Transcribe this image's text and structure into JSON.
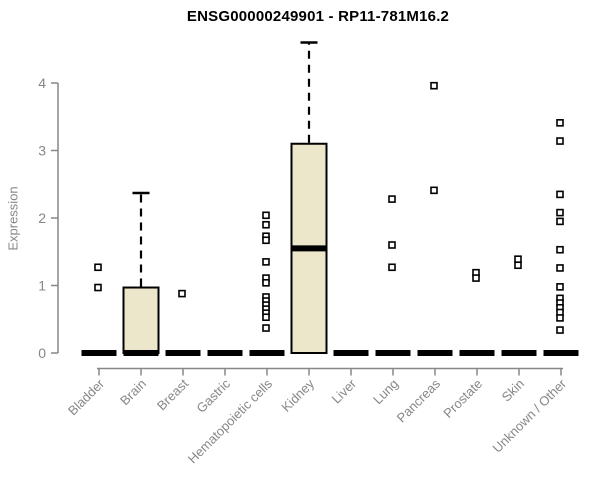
{
  "title": "ENSG00000249901 - RP11-781M16.2",
  "chart_data": {
    "type": "boxplot",
    "title": "ENSG00000249901 - RP11-781M16.2",
    "xlabel": "",
    "ylabel": "Expression",
    "ylim": [
      0,
      4
    ],
    "yticks": [
      "0",
      "1",
      "2",
      "3",
      "4"
    ],
    "grid": false,
    "legend": false,
    "categories": [
      "Bladder",
      "Brain",
      "Breast",
      "Gastric",
      "Hematopoietic cells",
      "Kidney",
      "Liver",
      "Lung",
      "Pancreas",
      "Prostate",
      "Skin",
      "Unknown / Other"
    ],
    "series": [
      {
        "category": "Bladder",
        "median": 0,
        "q1": 0,
        "q3": 0,
        "whisker_low": 0,
        "whisker_high": 0,
        "outliers": [
          1.27,
          0.97
        ]
      },
      {
        "category": "Brain",
        "median": 0,
        "q1": 0,
        "q3": 0.97,
        "whisker_low": 0,
        "whisker_high": 2.37,
        "outliers": []
      },
      {
        "category": "Breast",
        "median": 0,
        "q1": 0,
        "q3": 0,
        "whisker_low": 0,
        "whisker_high": 0,
        "outliers": [
          0.88
        ]
      },
      {
        "category": "Gastric",
        "median": 0,
        "q1": 0,
        "q3": 0,
        "whisker_low": 0,
        "whisker_high": 0,
        "outliers": []
      },
      {
        "category": "Hematopoietic cells",
        "median": 0,
        "q1": 0,
        "q3": 0,
        "whisker_low": 0,
        "whisker_high": 0,
        "outliers": [
          2.04,
          1.9,
          1.73,
          1.67,
          1.35,
          1.11,
          1.04,
          0.83,
          0.77,
          0.71,
          0.65,
          0.59,
          0.53,
          0.37
        ]
      },
      {
        "category": "Kidney",
        "median": 1.55,
        "q1": 0,
        "q3": 3.1,
        "whisker_low": 0,
        "whisker_high": 4.6,
        "outliers": []
      },
      {
        "category": "Liver",
        "median": 0,
        "q1": 0,
        "q3": 0,
        "whisker_low": 0,
        "whisker_high": 0,
        "outliers": []
      },
      {
        "category": "Lung",
        "median": 0,
        "q1": 0,
        "q3": 0,
        "whisker_low": 0,
        "whisker_high": 0,
        "outliers": [
          2.28,
          1.6,
          1.27
        ]
      },
      {
        "category": "Pancreas",
        "median": 0,
        "q1": 0,
        "q3": 0,
        "whisker_low": 0,
        "whisker_high": 0,
        "outliers": [
          3.96,
          2.41
        ]
      },
      {
        "category": "Prostate",
        "median": 0,
        "q1": 0,
        "q3": 0,
        "whisker_low": 0,
        "whisker_high": 0,
        "outliers": [
          1.19,
          1.11
        ]
      },
      {
        "category": "Skin",
        "median": 0,
        "q1": 0,
        "q3": 0,
        "whisker_low": 0,
        "whisker_high": 0,
        "outliers": [
          1.39,
          1.3
        ]
      },
      {
        "category": "Unknown / Other",
        "median": 0,
        "q1": 0,
        "q3": 0,
        "whisker_low": 0,
        "whisker_high": 0,
        "outliers": [
          3.41,
          3.14,
          2.35,
          2.08,
          1.95,
          1.53,
          1.26,
          0.98,
          0.81,
          0.74,
          0.67,
          0.6,
          0.52,
          0.34
        ]
      }
    ],
    "colors": {
      "box_fill": "#ece7cb",
      "box_border": "#000000",
      "median": "#000000",
      "whisker": "#000000",
      "outlier_fill": "#ffffff",
      "outlier_border": "#000000",
      "axis": "#878787",
      "tick_label": "#878787",
      "title": "#000000"
    }
  }
}
